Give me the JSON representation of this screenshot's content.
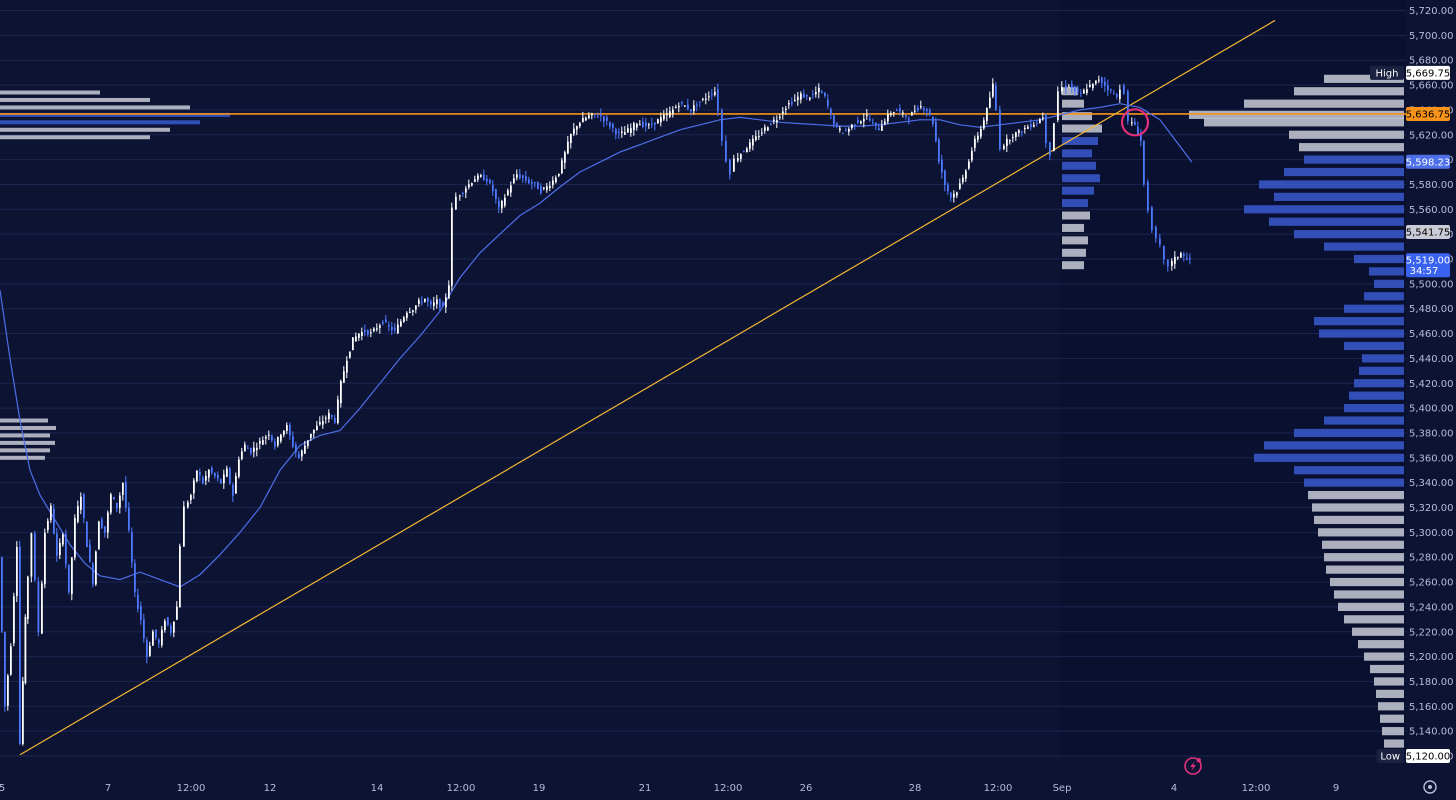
{
  "colors": {
    "background": "#0d1333",
    "volume_bar": "#c9cbd6",
    "volume_value_area": "#3a5bd0",
    "ema_line": "#4d6fe8",
    "trendline": "#f4b731",
    "horizontal_level": "#f7931a",
    "marker_circle": "#e0317a",
    "candle_up": "#ffffff",
    "candle_down": "#4d79ff"
  },
  "chart_data": {
    "type": "candlestick",
    "y_range": [
      5120,
      5725
    ],
    "y_ticks": [
      "5,120.00",
      "5,140.00",
      "5,160.00",
      "5,180.00",
      "5,200.00",
      "5,220.00",
      "5,240.00",
      "5,260.00",
      "5,280.00",
      "5,300.00",
      "5,320.00",
      "5,340.00",
      "5,360.00",
      "5,380.00",
      "5,400.00",
      "5,420.00",
      "5,440.00",
      "5,460.00",
      "5,480.00",
      "5,500.00",
      "5,520.00",
      "5,540.00",
      "5,560.00",
      "5,580.00",
      "5,600.00",
      "5,620.00",
      "5,640.00",
      "5,660.00",
      "5,680.00",
      "5,700.00",
      "5,720.00"
    ],
    "x_ticks": [
      "5",
      "7",
      "12:00",
      "12",
      "14",
      "12:00",
      "19",
      "21",
      "12:00",
      "26",
      "28",
      "12:00",
      "Sep",
      "4",
      "12:00",
      "9"
    ],
    "price_tags": [
      {
        "id": "high",
        "label": "High",
        "value": "5,669.75",
        "price": 5669.75,
        "bg": "#ffffff",
        "fg": "#000000",
        "label_bg": "#1b2140",
        "label_fg": "#ffffff"
      },
      {
        "id": "level",
        "label": "",
        "value": "5,636.75",
        "price": 5636.75,
        "bg": "#f7931a",
        "fg": "#000000"
      },
      {
        "id": "ema",
        "label": "",
        "value": "5,598.23",
        "price": 5598.23,
        "bg": "#4d6fe8",
        "fg": "#ffffff"
      },
      {
        "id": "poc",
        "label": "",
        "value": "5,541.75",
        "price": 5541.75,
        "bg": "#c9cbd6",
        "fg": "#000000"
      },
      {
        "id": "last",
        "label": "",
        "value": "5,519.00",
        "sub": "34:57",
        "price": 5519.0,
        "bg": "#3a62f0",
        "fg": "#ffffff"
      },
      {
        "id": "low",
        "label": "Low",
        "value": "5,120.00",
        "price": 5120.0,
        "bg": "#ffffff",
        "fg": "#000000",
        "label_bg": "#1b2140",
        "label_fg": "#ffffff"
      }
    ],
    "horizontal_level": 5636.75,
    "trendline": {
      "from": [
        "5",
        5121
      ],
      "to": [
        "9",
        5712
      ]
    },
    "marker_near_price": 5630,
    "close_path": [
      [
        0,
        5280
      ],
      [
        6,
        5160
      ],
      [
        12,
        5210
      ],
      [
        18,
        5290
      ],
      [
        21,
        5130
      ],
      [
        26,
        5230
      ],
      [
        33,
        5300
      ],
      [
        40,
        5220
      ],
      [
        46,
        5300
      ],
      [
        52,
        5320
      ],
      [
        58,
        5280
      ],
      [
        64,
        5300
      ],
      [
        70,
        5250
      ],
      [
        76,
        5310
      ],
      [
        82,
        5330
      ],
      [
        88,
        5290
      ],
      [
        94,
        5260
      ],
      [
        100,
        5310
      ],
      [
        106,
        5300
      ],
      [
        112,
        5330
      ],
      [
        118,
        5320
      ],
      [
        124,
        5340
      ],
      [
        130,
        5300
      ],
      [
        136,
        5250
      ],
      [
        142,
        5230
      ],
      [
        148,
        5200
      ],
      [
        154,
        5220
      ],
      [
        160,
        5210
      ],
      [
        166,
        5230
      ],
      [
        172,
        5220
      ],
      [
        178,
        5240
      ],
      [
        182,
        5290
      ],
      [
        186,
        5320
      ],
      [
        192,
        5330
      ],
      [
        198,
        5350
      ],
      [
        204,
        5340
      ],
      [
        210,
        5350
      ],
      [
        216,
        5345
      ],
      [
        222,
        5340
      ],
      [
        228,
        5350
      ],
      [
        234,
        5330
      ],
      [
        240,
        5360
      ],
      [
        246,
        5370
      ],
      [
        252,
        5365
      ],
      [
        258,
        5370
      ],
      [
        264,
        5375
      ],
      [
        270,
        5380
      ],
      [
        276,
        5370
      ],
      [
        282,
        5380
      ],
      [
        288,
        5385
      ],
      [
        294,
        5370
      ],
      [
        300,
        5360
      ],
      [
        306,
        5370
      ],
      [
        312,
        5380
      ],
      [
        318,
        5385
      ],
      [
        324,
        5390
      ],
      [
        330,
        5395
      ],
      [
        336,
        5390
      ],
      [
        342,
        5420
      ],
      [
        348,
        5440
      ],
      [
        354,
        5455
      ],
      [
        360,
        5460
      ],
      [
        366,
        5462
      ],
      [
        372,
        5460
      ],
      [
        378,
        5465
      ],
      [
        384,
        5470
      ],
      [
        390,
        5465
      ],
      [
        396,
        5462
      ],
      [
        402,
        5470
      ],
      [
        408,
        5478
      ],
      [
        414,
        5480
      ],
      [
        420,
        5485
      ],
      [
        426,
        5488
      ],
      [
        432,
        5482
      ],
      [
        438,
        5486
      ],
      [
        444,
        5480
      ],
      [
        450,
        5500
      ],
      [
        454,
        5560
      ],
      [
        458,
        5570
      ],
      [
        464,
        5575
      ],
      [
        470,
        5580
      ],
      [
        476,
        5585
      ],
      [
        482,
        5586
      ],
      [
        488,
        5584
      ],
      [
        494,
        5575
      ],
      [
        500,
        5560
      ],
      [
        506,
        5570
      ],
      [
        512,
        5580
      ],
      [
        518,
        5588
      ],
      [
        524,
        5585
      ],
      [
        530,
        5582
      ],
      [
        536,
        5580
      ],
      [
        542,
        5575
      ],
      [
        548,
        5578
      ],
      [
        554,
        5583
      ],
      [
        560,
        5590
      ],
      [
        566,
        5605
      ],
      [
        572,
        5620
      ],
      [
        578,
        5628
      ],
      [
        584,
        5632
      ],
      [
        590,
        5635
      ],
      [
        596,
        5636
      ],
      [
        602,
        5635
      ],
      [
        608,
        5630
      ],
      [
        614,
        5625
      ],
      [
        620,
        5620
      ],
      [
        626,
        5622
      ],
      [
        632,
        5625
      ],
      [
        638,
        5630
      ],
      [
        644,
        5628
      ],
      [
        650,
        5627
      ],
      [
        656,
        5630
      ],
      [
        662,
        5633
      ],
      [
        668,
        5636
      ],
      [
        674,
        5640
      ],
      [
        680,
        5645
      ],
      [
        686,
        5643
      ],
      [
        692,
        5640
      ],
      [
        698,
        5645
      ],
      [
        704,
        5648
      ],
      [
        710,
        5652
      ],
      [
        716,
        5655
      ],
      [
        720,
        5640
      ],
      [
        724,
        5615
      ],
      [
        728,
        5600
      ],
      [
        732,
        5590
      ],
      [
        736,
        5600
      ],
      [
        742,
        5605
      ],
      [
        748,
        5610
      ],
      [
        754,
        5615
      ],
      [
        760,
        5620
      ],
      [
        766,
        5625
      ],
      [
        772,
        5630
      ],
      [
        778,
        5633
      ],
      [
        784,
        5640
      ],
      [
        790,
        5645
      ],
      [
        796,
        5648
      ],
      [
        802,
        5652
      ],
      [
        808,
        5650
      ],
      [
        814,
        5652
      ],
      [
        820,
        5656
      ],
      [
        826,
        5650
      ],
      [
        832,
        5635
      ],
      [
        838,
        5625
      ],
      [
        844,
        5622
      ],
      [
        850,
        5625
      ],
      [
        856,
        5630
      ],
      [
        862,
        5632
      ],
      [
        868,
        5635
      ],
      [
        874,
        5628
      ],
      [
        880,
        5625
      ],
      [
        886,
        5632
      ],
      [
        892,
        5638
      ],
      [
        898,
        5640
      ],
      [
        904,
        5636
      ],
      [
        910,
        5634
      ],
      [
        916,
        5640
      ],
      [
        922,
        5643
      ],
      [
        928,
        5640
      ],
      [
        934,
        5630
      ],
      [
        940,
        5600
      ],
      [
        946,
        5580
      ],
      [
        952,
        5570
      ],
      [
        958,
        5575
      ],
      [
        964,
        5585
      ],
      [
        970,
        5600
      ],
      [
        976,
        5615
      ],
      [
        982,
        5625
      ],
      [
        988,
        5640
      ],
      [
        994,
        5660
      ],
      [
        998,
        5640
      ],
      [
        1002,
        5610
      ],
      [
        1008,
        5615
      ],
      [
        1014,
        5620
      ],
      [
        1020,
        5622
      ],
      [
        1026,
        5625
      ],
      [
        1032,
        5628
      ],
      [
        1038,
        5630
      ],
      [
        1044,
        5635
      ],
      [
        1048,
        5615
      ],
      [
        1052,
        5605
      ],
      [
        1056,
        5630
      ],
      [
        1060,
        5655
      ],
      [
        1064,
        5658
      ],
      [
        1070,
        5660
      ],
      [
        1076,
        5655
      ],
      [
        1082,
        5652
      ],
      [
        1088,
        5658
      ],
      [
        1094,
        5660
      ],
      [
        1100,
        5665
      ],
      [
        1106,
        5660
      ],
      [
        1112,
        5655
      ],
      [
        1118,
        5650
      ],
      [
        1122,
        5658
      ],
      [
        1126,
        5655
      ],
      [
        1130,
        5630
      ],
      [
        1136,
        5628
      ],
      [
        1142,
        5615
      ],
      [
        1146,
        5580
      ],
      [
        1150,
        5560
      ],
      [
        1154,
        5545
      ],
      [
        1158,
        5535
      ],
      [
        1162,
        5530
      ],
      [
        1166,
        5518
      ],
      [
        1170,
        5515
      ],
      [
        1176,
        5520
      ],
      [
        1182,
        5525
      ],
      [
        1188,
        5519
      ],
      [
        1192,
        5520
      ]
    ],
    "ema_path": [
      [
        0,
        5495
      ],
      [
        10,
        5440
      ],
      [
        20,
        5390
      ],
      [
        30,
        5350
      ],
      [
        40,
        5330
      ],
      [
        55,
        5310
      ],
      [
        70,
        5290
      ],
      [
        85,
        5275
      ],
      [
        100,
        5265
      ],
      [
        120,
        5262
      ],
      [
        140,
        5268
      ],
      [
        160,
        5262
      ],
      [
        180,
        5256
      ],
      [
        200,
        5266
      ],
      [
        220,
        5282
      ],
      [
        240,
        5300
      ],
      [
        260,
        5320
      ],
      [
        280,
        5350
      ],
      [
        300,
        5370
      ],
      [
        320,
        5378
      ],
      [
        340,
        5382
      ],
      [
        360,
        5400
      ],
      [
        380,
        5420
      ],
      [
        400,
        5440
      ],
      [
        420,
        5458
      ],
      [
        440,
        5478
      ],
      [
        460,
        5505
      ],
      [
        480,
        5525
      ],
      [
        500,
        5540
      ],
      [
        520,
        5555
      ],
      [
        540,
        5565
      ],
      [
        560,
        5578
      ],
      [
        580,
        5590
      ],
      [
        600,
        5598
      ],
      [
        620,
        5606
      ],
      [
        640,
        5612
      ],
      [
        660,
        5618
      ],
      [
        680,
        5624
      ],
      [
        700,
        5628
      ],
      [
        720,
        5632
      ],
      [
        740,
        5634
      ],
      [
        760,
        5632
      ],
      [
        780,
        5630
      ],
      [
        800,
        5629
      ],
      [
        820,
        5628
      ],
      [
        840,
        5627
      ],
      [
        860,
        5627
      ],
      [
        880,
        5628
      ],
      [
        900,
        5630
      ],
      [
        920,
        5632
      ],
      [
        940,
        5632
      ],
      [
        960,
        5628
      ],
      [
        980,
        5626
      ],
      [
        1000,
        5628
      ],
      [
        1020,
        5630
      ],
      [
        1040,
        5632
      ],
      [
        1060,
        5636
      ],
      [
        1080,
        5640
      ],
      [
        1100,
        5642
      ],
      [
        1120,
        5645
      ],
      [
        1140,
        5642
      ],
      [
        1160,
        5632
      ],
      [
        1176,
        5615
      ],
      [
        1192,
        5598
      ]
    ],
    "volume_profile_main": [
      [
        5120,
        18
      ],
      [
        5130,
        20
      ],
      [
        5140,
        22
      ],
      [
        5150,
        24
      ],
      [
        5160,
        26
      ],
      [
        5170,
        28
      ],
      [
        5180,
        30
      ],
      [
        5190,
        34
      ],
      [
        5200,
        40
      ],
      [
        5210,
        46
      ],
      [
        5220,
        52
      ],
      [
        5230,
        60
      ],
      [
        5240,
        66
      ],
      [
        5250,
        70
      ],
      [
        5260,
        74
      ],
      [
        5270,
        78
      ],
      [
        5280,
        80
      ],
      [
        5290,
        82
      ],
      [
        5300,
        86
      ],
      [
        5310,
        90
      ],
      [
        5320,
        92
      ],
      [
        5330,
        96
      ],
      [
        5340,
        100
      ],
      [
        5350,
        110
      ],
      [
        5360,
        150
      ],
      [
        5370,
        140
      ],
      [
        5380,
        110
      ],
      [
        5390,
        80
      ],
      [
        5400,
        60
      ],
      [
        5410,
        55
      ],
      [
        5420,
        50
      ],
      [
        5430,
        45
      ],
      [
        5440,
        42
      ],
      [
        5450,
        60
      ],
      [
        5460,
        85
      ],
      [
        5470,
        90
      ],
      [
        5480,
        60
      ],
      [
        5490,
        40
      ],
      [
        5500,
        30
      ],
      [
        5510,
        35
      ],
      [
        5520,
        50
      ],
      [
        5530,
        80
      ],
      [
        5540,
        110
      ],
      [
        5550,
        135
      ],
      [
        5560,
        160
      ],
      [
        5570,
        130
      ],
      [
        5580,
        145
      ],
      [
        5590,
        120
      ],
      [
        5600,
        100
      ],
      [
        5610,
        105
      ],
      [
        5620,
        115
      ],
      [
        5630,
        200
      ],
      [
        5636,
        215
      ],
      [
        5645,
        160
      ],
      [
        5655,
        110
      ],
      [
        5665,
        80
      ]
    ],
    "volume_profile_session": [
      [
        5515,
        22
      ],
      [
        5525,
        24
      ],
      [
        5535,
        26
      ],
      [
        5545,
        22
      ],
      [
        5555,
        28
      ],
      [
        5565,
        26
      ],
      [
        5575,
        32
      ],
      [
        5585,
        38
      ],
      [
        5595,
        34
      ],
      [
        5605,
        30
      ],
      [
        5615,
        36
      ],
      [
        5625,
        40
      ],
      [
        5635,
        30
      ],
      [
        5645,
        22
      ],
      [
        5655,
        16
      ]
    ],
    "volume_profile_left": [
      [
        5360,
        45
      ],
      [
        5366,
        50
      ],
      [
        5372,
        55
      ],
      [
        5378,
        50
      ],
      [
        5384,
        56
      ],
      [
        5390,
        48
      ],
      [
        5618,
        150
      ],
      [
        5624,
        170
      ],
      [
        5630,
        200
      ],
      [
        5636,
        230
      ],
      [
        5642,
        190
      ],
      [
        5648,
        150
      ],
      [
        5654,
        100
      ]
    ]
  }
}
